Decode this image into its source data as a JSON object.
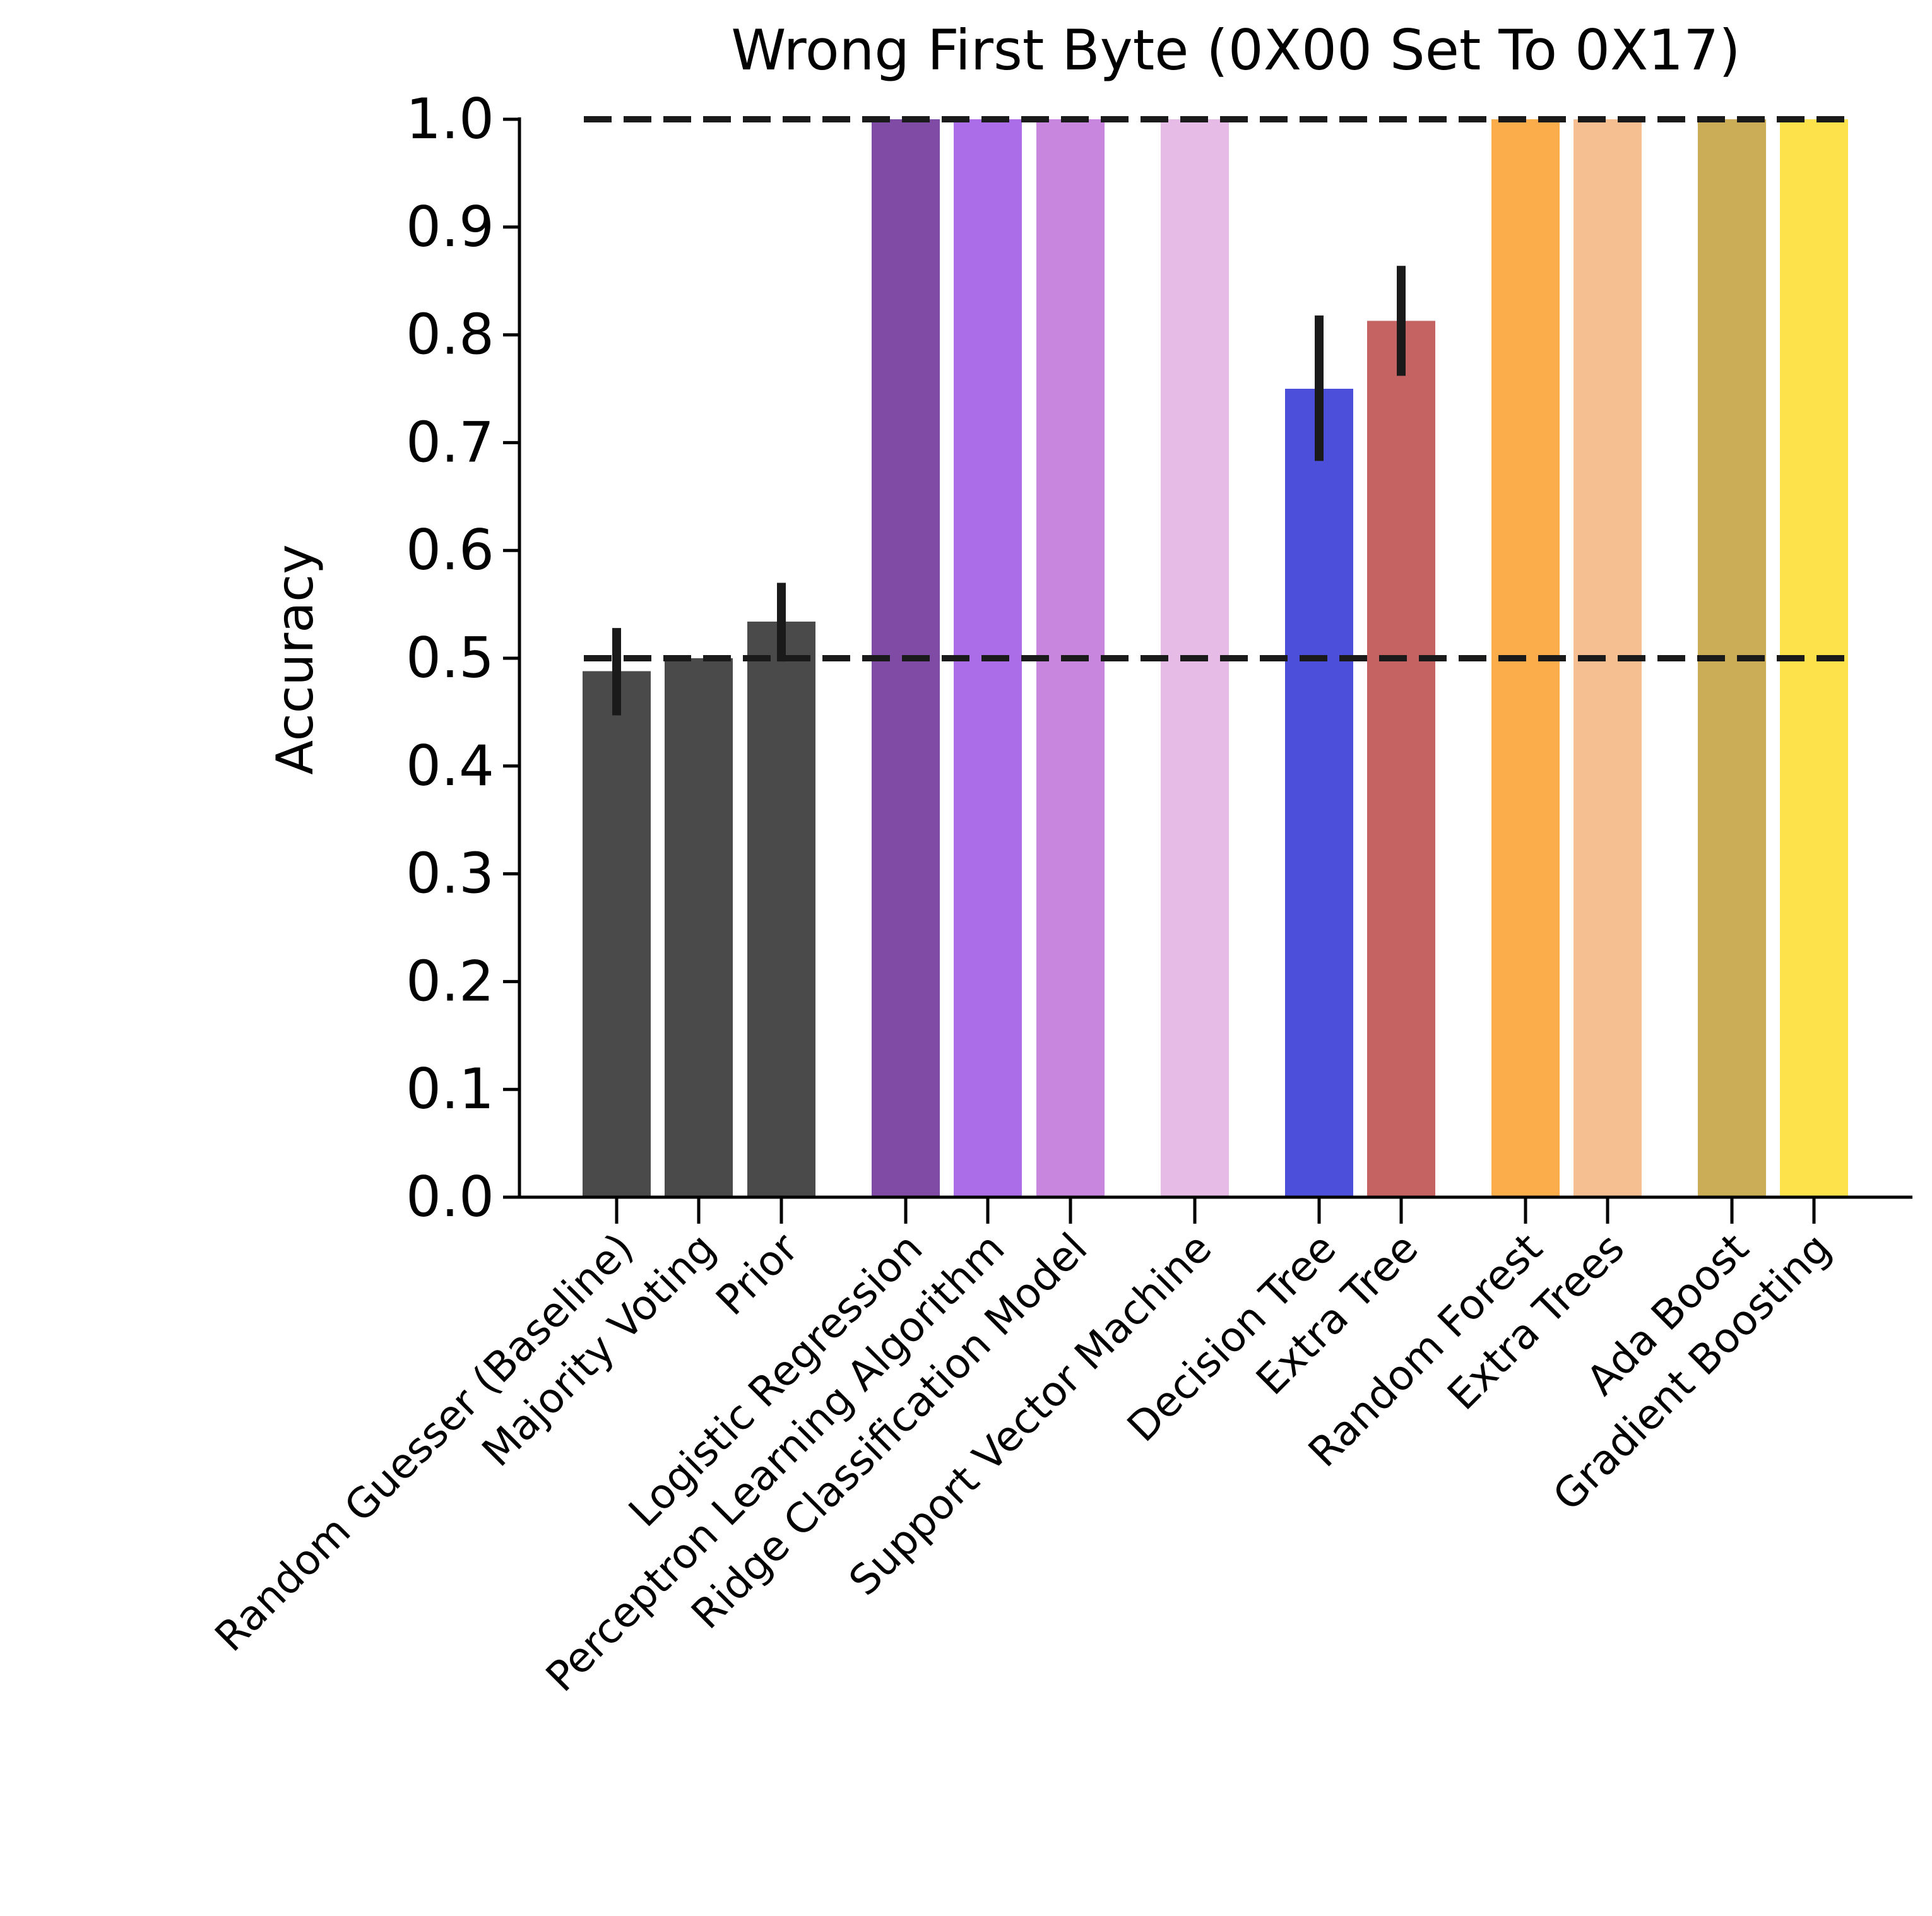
{
  "chart_data": {
    "type": "bar",
    "title": "Wrong First Byte (0X00 Set To 0X17)",
    "xlabel": "",
    "ylabel": "Accuracy",
    "ylim": [
      0.0,
      1.1
    ],
    "yticks": [
      "0.0",
      "0.1",
      "0.2",
      "0.3",
      "0.4",
      "0.5",
      "0.6",
      "0.7",
      "0.8",
      "0.9",
      "1.0"
    ],
    "reference_lines": [
      0.5,
      1.0
    ],
    "grid": false,
    "legend": "none",
    "categories": [
      "Random Guesser (Baseline)",
      "Majority Voting",
      "Prior",
      "Logistic Regression",
      "Perceptron Learning Algorithm",
      "Ridge Classification Model",
      "Support Vector Machine",
      "Decision Tree",
      "Extra Tree",
      "Random Forest",
      "Extra Trees",
      "Ada Boost",
      "Gradient Boosting"
    ],
    "values": [
      0.488,
      0.5,
      0.534,
      1.0,
      1.0,
      1.0,
      1.0,
      0.75,
      0.813,
      1.0,
      1.0,
      1.0,
      1.0
    ],
    "error_low": [
      0.447,
      null,
      0.497,
      null,
      null,
      null,
      null,
      0.683,
      0.762,
      null,
      null,
      null,
      null
    ],
    "error_high": [
      0.528,
      null,
      0.57,
      null,
      null,
      null,
      null,
      0.818,
      0.864,
      null,
      null,
      null,
      null
    ],
    "colors": [
      "#4a4a4a",
      "#4a4a4a",
      "#4a4a4a",
      "#804ba4",
      "#ab6de8",
      "#c886df",
      "#e6bbe5",
      "#4b4fd9",
      "#c56363",
      "#fcad4b",
      "#f6bf91",
      "#cbac57",
      "#fee24b"
    ]
  }
}
